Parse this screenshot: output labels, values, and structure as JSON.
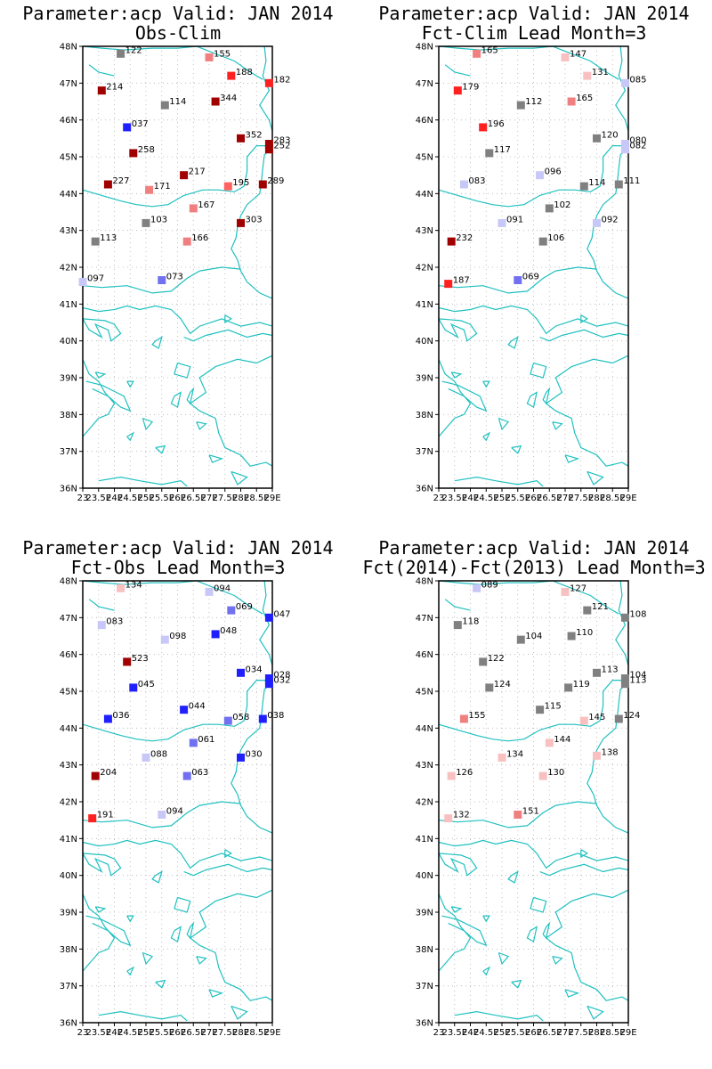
{
  "panels": [
    {
      "title_line1": "Parameter:acp Valid: JAN 2014",
      "title_line2": "Obs-Clim",
      "stations": [
        {
          "lon": 24.2,
          "lat": 47.8,
          "label": "122",
          "color": "#808080"
        },
        {
          "lon": 27.0,
          "lat": 47.7,
          "label": "155",
          "color": "#f08080"
        },
        {
          "lon": 27.7,
          "lat": 47.2,
          "label": "188",
          "color": "#ff2020"
        },
        {
          "lon": 28.9,
          "lat": 47.0,
          "label": "182",
          "color": "#ff2020"
        },
        {
          "lon": 23.6,
          "lat": 46.8,
          "label": "214",
          "color": "#a00000"
        },
        {
          "lon": 25.6,
          "lat": 46.4,
          "label": "114",
          "color": "#808080"
        },
        {
          "lon": 27.2,
          "lat": 46.5,
          "label": "344",
          "color": "#a00000"
        },
        {
          "lon": 24.4,
          "lat": 45.8,
          "label": "037",
          "color": "#2020ff"
        },
        {
          "lon": 28.0,
          "lat": 45.5,
          "label": "352",
          "color": "#a00000"
        },
        {
          "lon": 28.9,
          "lat": 45.35,
          "label": "283",
          "color": "#a00000"
        },
        {
          "lon": 28.9,
          "lat": 45.2,
          "label": "252",
          "color": "#a00000"
        },
        {
          "lon": 24.6,
          "lat": 45.1,
          "label": "258",
          "color": "#a00000"
        },
        {
          "lon": 26.2,
          "lat": 44.5,
          "label": "217",
          "color": "#a00000"
        },
        {
          "lon": 23.8,
          "lat": 44.25,
          "label": "227",
          "color": "#a00000"
        },
        {
          "lon": 25.1,
          "lat": 44.1,
          "label": "171",
          "color": "#f08080"
        },
        {
          "lon": 27.6,
          "lat": 44.2,
          "label": "195",
          "color": "#ff6060"
        },
        {
          "lon": 28.7,
          "lat": 44.25,
          "label": "289",
          "color": "#a00000"
        },
        {
          "lon": 26.5,
          "lat": 43.6,
          "label": "167",
          "color": "#f08080"
        },
        {
          "lon": 25.0,
          "lat": 43.2,
          "label": "103",
          "color": "#808080"
        },
        {
          "lon": 28.0,
          "lat": 43.2,
          "label": "303",
          "color": "#a00000"
        },
        {
          "lon": 23.4,
          "lat": 42.7,
          "label": "113",
          "color": "#808080"
        },
        {
          "lon": 26.3,
          "lat": 42.7,
          "label": "166",
          "color": "#f08080"
        },
        {
          "lon": 25.5,
          "lat": 41.65,
          "label": "073",
          "color": "#7070f0"
        },
        {
          "lon": 23.0,
          "lat": 41.6,
          "label": "097",
          "color": "#c8c8f8"
        }
      ]
    },
    {
      "title_line1": "Parameter:acp Valid: JAN 2014",
      "title_line2": "Fct-Clim Lead Month=3",
      "stations": [
        {
          "lon": 24.2,
          "lat": 47.8,
          "label": "165",
          "color": "#f08080"
        },
        {
          "lon": 27.0,
          "lat": 47.7,
          "label": "147",
          "color": "#f8c0c0"
        },
        {
          "lon": 27.7,
          "lat": 47.2,
          "label": "131",
          "color": "#f8c0c0"
        },
        {
          "lon": 28.9,
          "lat": 47.0,
          "label": "085",
          "color": "#c8c8f8"
        },
        {
          "lon": 23.6,
          "lat": 46.8,
          "label": "179",
          "color": "#ff2020"
        },
        {
          "lon": 25.6,
          "lat": 46.4,
          "label": "112",
          "color": "#808080"
        },
        {
          "lon": 27.2,
          "lat": 46.5,
          "label": "165",
          "color": "#f08080"
        },
        {
          "lon": 24.4,
          "lat": 45.8,
          "label": "196",
          "color": "#ff2020"
        },
        {
          "lon": 28.0,
          "lat": 45.5,
          "label": "120",
          "color": "#808080"
        },
        {
          "lon": 28.9,
          "lat": 45.35,
          "label": "080",
          "color": "#c8c8f8"
        },
        {
          "lon": 28.9,
          "lat": 45.2,
          "label": "082",
          "color": "#c8c8f8"
        },
        {
          "lon": 24.6,
          "lat": 45.1,
          "label": "117",
          "color": "#808080"
        },
        {
          "lon": 26.2,
          "lat": 44.5,
          "label": "096",
          "color": "#c8c8f8"
        },
        {
          "lon": 23.8,
          "lat": 44.25,
          "label": "083",
          "color": "#c8c8f8"
        },
        {
          "lon": 27.6,
          "lat": 44.2,
          "label": "114",
          "color": "#808080"
        },
        {
          "lon": 28.7,
          "lat": 44.25,
          "label": "111",
          "color": "#808080"
        },
        {
          "lon": 26.5,
          "lat": 43.6,
          "label": "102",
          "color": "#808080"
        },
        {
          "lon": 25.0,
          "lat": 43.2,
          "label": "091",
          "color": "#c8c8f8"
        },
        {
          "lon": 28.0,
          "lat": 43.2,
          "label": "092",
          "color": "#c8c8f8"
        },
        {
          "lon": 23.4,
          "lat": 42.7,
          "label": "232",
          "color": "#a00000"
        },
        {
          "lon": 26.3,
          "lat": 42.7,
          "label": "106",
          "color": "#808080"
        },
        {
          "lon": 25.5,
          "lat": 41.65,
          "label": "069",
          "color": "#7070f0"
        },
        {
          "lon": 23.3,
          "lat": 41.55,
          "label": "187",
          "color": "#ff2020"
        }
      ]
    },
    {
      "title_line1": "Parameter:acp Valid: JAN 2014",
      "title_line2": "Fct-Obs Lead Month=3",
      "stations": [
        {
          "lon": 24.2,
          "lat": 47.8,
          "label": "134",
          "color": "#f8c0c0"
        },
        {
          "lon": 27.0,
          "lat": 47.7,
          "label": "094",
          "color": "#c8c8f8"
        },
        {
          "lon": 27.7,
          "lat": 47.2,
          "label": "069",
          "color": "#7070f0"
        },
        {
          "lon": 28.9,
          "lat": 47.0,
          "label": "047",
          "color": "#2020ff"
        },
        {
          "lon": 23.6,
          "lat": 46.8,
          "label": "083",
          "color": "#c8c8f8"
        },
        {
          "lon": 25.6,
          "lat": 46.4,
          "label": "098",
          "color": "#c8c8f8"
        },
        {
          "lon": 27.2,
          "lat": 46.55,
          "label": "048",
          "color": "#2020ff"
        },
        {
          "lon": 24.4,
          "lat": 45.8,
          "label": "523",
          "color": "#a00000"
        },
        {
          "lon": 28.0,
          "lat": 45.5,
          "label": "034",
          "color": "#2020ff"
        },
        {
          "lon": 28.9,
          "lat": 45.35,
          "label": "028",
          "color": "#2020ff"
        },
        {
          "lon": 28.9,
          "lat": 45.2,
          "label": "032",
          "color": "#2020ff"
        },
        {
          "lon": 24.6,
          "lat": 45.1,
          "label": "045",
          "color": "#2020ff"
        },
        {
          "lon": 26.2,
          "lat": 44.5,
          "label": "044",
          "color": "#2020ff"
        },
        {
          "lon": 23.8,
          "lat": 44.25,
          "label": "036",
          "color": "#2020ff"
        },
        {
          "lon": 27.6,
          "lat": 44.2,
          "label": "058",
          "color": "#7070f0"
        },
        {
          "lon": 28.7,
          "lat": 44.25,
          "label": "038",
          "color": "#2020ff"
        },
        {
          "lon": 26.5,
          "lat": 43.6,
          "label": "061",
          "color": "#7070f0"
        },
        {
          "lon": 25.0,
          "lat": 43.2,
          "label": "088",
          "color": "#c8c8f8"
        },
        {
          "lon": 28.0,
          "lat": 43.2,
          "label": "030",
          "color": "#2020ff"
        },
        {
          "lon": 23.4,
          "lat": 42.7,
          "label": "204",
          "color": "#a00000"
        },
        {
          "lon": 26.3,
          "lat": 42.7,
          "label": "063",
          "color": "#7070f0"
        },
        {
          "lon": 25.5,
          "lat": 41.65,
          "label": "094",
          "color": "#c8c8f8"
        },
        {
          "lon": 23.3,
          "lat": 41.55,
          "label": "191",
          "color": "#ff2020"
        }
      ]
    },
    {
      "title_line1": "Parameter:acp Valid: JAN 2014",
      "title_line2": "Fct(2014)-Fct(2013) Lead Month=3",
      "stations": [
        {
          "lon": 24.2,
          "lat": 47.8,
          "label": "089",
          "color": "#c8c8f8"
        },
        {
          "lon": 27.0,
          "lat": 47.7,
          "label": "127",
          "color": "#f8c0c0"
        },
        {
          "lon": 27.7,
          "lat": 47.2,
          "label": "121",
          "color": "#808080"
        },
        {
          "lon": 28.9,
          "lat": 47.0,
          "label": "108",
          "color": "#808080"
        },
        {
          "lon": 23.6,
          "lat": 46.8,
          "label": "118",
          "color": "#808080"
        },
        {
          "lon": 25.6,
          "lat": 46.4,
          "label": "104",
          "color": "#808080"
        },
        {
          "lon": 27.2,
          "lat": 46.5,
          "label": "110",
          "color": "#808080"
        },
        {
          "lon": 24.4,
          "lat": 45.8,
          "label": "122",
          "color": "#808080"
        },
        {
          "lon": 28.0,
          "lat": 45.5,
          "label": "113",
          "color": "#808080"
        },
        {
          "lon": 28.9,
          "lat": 45.35,
          "label": "104",
          "color": "#808080"
        },
        {
          "lon": 28.9,
          "lat": 45.2,
          "label": "113",
          "color": "#808080"
        },
        {
          "lon": 24.6,
          "lat": 45.1,
          "label": "124",
          "color": "#808080"
        },
        {
          "lon": 27.1,
          "lat": 45.1,
          "label": "119",
          "color": "#808080"
        },
        {
          "lon": 26.2,
          "lat": 44.5,
          "label": "115",
          "color": "#808080"
        },
        {
          "lon": 23.8,
          "lat": 44.25,
          "label": "155",
          "color": "#f08080"
        },
        {
          "lon": 27.6,
          "lat": 44.2,
          "label": "145",
          "color": "#f8c0c0"
        },
        {
          "lon": 28.7,
          "lat": 44.25,
          "label": "124",
          "color": "#808080"
        },
        {
          "lon": 26.5,
          "lat": 43.6,
          "label": "144",
          "color": "#f8c0c0"
        },
        {
          "lon": 25.0,
          "lat": 43.2,
          "label": "134",
          "color": "#f8c0c0"
        },
        {
          "lon": 28.0,
          "lat": 43.25,
          "label": "138",
          "color": "#f8c0c0"
        },
        {
          "lon": 23.4,
          "lat": 42.7,
          "label": "126",
          "color": "#f8c0c0"
        },
        {
          "lon": 26.3,
          "lat": 42.7,
          "label": "130",
          "color": "#f8c0c0"
        },
        {
          "lon": 25.5,
          "lat": 41.65,
          "label": "151",
          "color": "#f08080"
        },
        {
          "lon": 23.3,
          "lat": 41.55,
          "label": "132",
          "color": "#f8c0c0"
        }
      ]
    }
  ],
  "axes": {
    "lat_ticks": [
      "36N",
      "37N",
      "38N",
      "39N",
      "40N",
      "41N",
      "42N",
      "43N",
      "44N",
      "45N",
      "46N",
      "47N",
      "48N"
    ],
    "lon_ticks": [
      "23",
      "23.5E",
      "24E",
      "24.5E",
      "25E",
      "25.5E",
      "26E",
      "26.5E",
      "27E",
      "27.5E",
      "28E",
      "28.5E",
      "29E"
    ],
    "lon_range": [
      23,
      29
    ],
    "lat_range": [
      36,
      48
    ],
    "grid": "dotted",
    "coast_color": "#20c0c0"
  }
}
